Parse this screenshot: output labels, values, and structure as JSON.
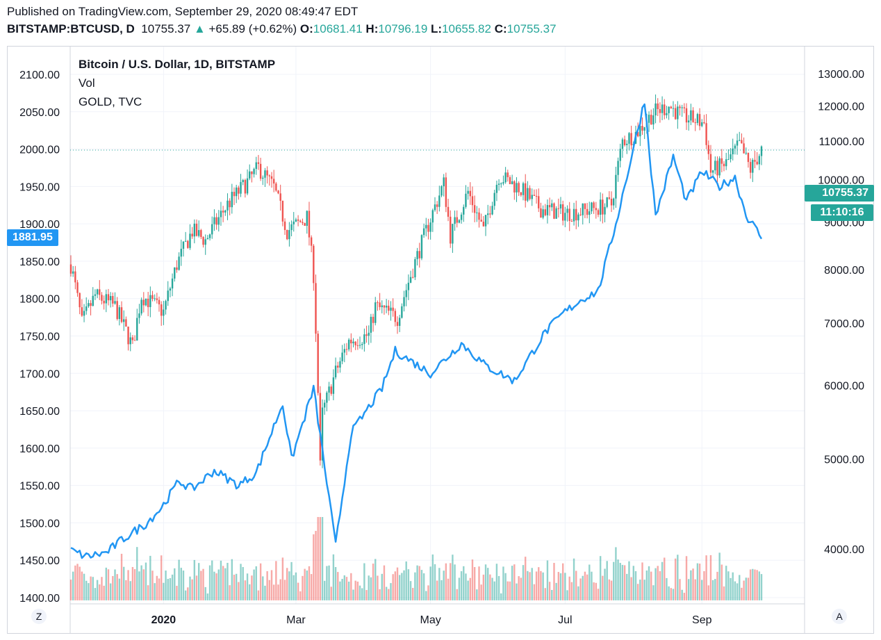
{
  "header": {
    "published": "Published on TradingView.com, September 29, 2020 08:49:47 EDT",
    "symbol": "BITSTAMP:BTCUSD, D",
    "last": "10755.37",
    "change": "+65.89 (+0.62%)",
    "o_label": "O:",
    "o_value": "10681.41",
    "h_label": "H:",
    "h_value": "10796.19",
    "l_label": "L:",
    "l_value": "10655.82",
    "c_label": "C:",
    "c_value": "10755.37"
  },
  "legend": {
    "main": "Bitcoin / U.S. Dollar, 1D, BITSTAMP",
    "vol": "Vol",
    "overlay": "GOLD, TVC"
  },
  "badges": {
    "gold_last": "1881.95",
    "btc_last": "10755.37",
    "countdown": "11:10:16"
  },
  "buttons": {
    "zoom": "Z",
    "auto": "A"
  },
  "colors": {
    "up": "#26a69a",
    "down": "#ef5350",
    "gold_line": "#2196f3"
  },
  "chart_data": {
    "type": "candlestick",
    "left_axis": {
      "label": "GOLD",
      "ticks": [
        1400,
        1450,
        1500,
        1550,
        1600,
        1650,
        1700,
        1750,
        1800,
        1850,
        1900,
        1950,
        2000,
        2050,
        2100
      ],
      "tick_labels": [
        "1400.00",
        "1450.00",
        "1500.00",
        "1550.00",
        "1600.00",
        "1650.00",
        "1700.00",
        "1750.00",
        "1800.00",
        "1850.00",
        "1900.00",
        "1950.00",
        "2000.00",
        "2050.00",
        "2100.00"
      ]
    },
    "right_axis": {
      "label": "BTCUSD",
      "ticks": [
        4000,
        5000,
        6000,
        7000,
        8000,
        9000,
        10000,
        11000,
        12000,
        13000
      ],
      "tick_labels": [
        "4000.00",
        "5000.00",
        "6000.00",
        "7000.00",
        "8000.00",
        "9000.00",
        "10000.00",
        "11000.00",
        "12000.00",
        "13000.00"
      ],
      "scale": "log"
    },
    "x_labels": [
      {
        "label": "2020",
        "date": "2020-01-01",
        "bold": true
      },
      {
        "label": "Mar",
        "date": "2020-03-01",
        "bold": false
      },
      {
        "label": "May",
        "date": "2020-05-01",
        "bold": false
      },
      {
        "label": "Jul",
        "date": "2020-07-01",
        "bold": false
      },
      {
        "label": "Sep",
        "date": "2020-09-01",
        "bold": false
      }
    ],
    "x_range": [
      "2019-11-20",
      "2020-09-28"
    ],
    "btc_anchors": [
      [
        "2019-11-20",
        8100
      ],
      [
        "2019-11-25",
        7000
      ],
      [
        "2019-12-01",
        7500
      ],
      [
        "2019-12-10",
        7300
      ],
      [
        "2019-12-18",
        6600
      ],
      [
        "2019-12-22",
        7500
      ],
      [
        "2020-01-01",
        7200
      ],
      [
        "2020-01-07",
        8100
      ],
      [
        "2020-01-14",
        8800
      ],
      [
        "2020-01-20",
        8600
      ],
      [
        "2020-01-30",
        9400
      ],
      [
        "2020-02-09",
        10000
      ],
      [
        "2020-02-13",
        10300
      ],
      [
        "2020-02-20",
        9800
      ],
      [
        "2020-02-26",
        8800
      ],
      [
        "2020-03-06",
        9100
      ],
      [
        "2020-03-09",
        7900
      ],
      [
        "2020-03-12",
        4900
      ],
      [
        "2020-03-13",
        5600
      ],
      [
        "2020-03-19",
        6200
      ],
      [
        "2020-03-25",
        6700
      ],
      [
        "2020-04-03",
        6800
      ],
      [
        "2020-04-06",
        7300
      ],
      [
        "2020-04-16",
        7100
      ],
      [
        "2020-04-29",
        8800
      ],
      [
        "2020-05-07",
        9900
      ],
      [
        "2020-05-10",
        8700
      ],
      [
        "2020-05-18",
        9700
      ],
      [
        "2020-05-25",
        8800
      ],
      [
        "2020-06-01",
        10100
      ],
      [
        "2020-06-10",
        9800
      ],
      [
        "2020-06-20",
        9300
      ],
      [
        "2020-07-01",
        9200
      ],
      [
        "2020-07-10",
        9250
      ],
      [
        "2020-07-22",
        9400
      ],
      [
        "2020-07-27",
        11000
      ],
      [
        "2020-08-02",
        11200
      ],
      [
        "2020-08-10",
        11800
      ],
      [
        "2020-08-17",
        12000
      ],
      [
        "2020-08-23",
        11700
      ],
      [
        "2020-09-02",
        11500
      ],
      [
        "2020-09-05",
        10200
      ],
      [
        "2020-09-12",
        10400
      ],
      [
        "2020-09-18",
        10900
      ],
      [
        "2020-09-23",
        10250
      ],
      [
        "2020-09-28",
        10755
      ]
    ],
    "gold_anchors": [
      [
        "2019-11-20",
        1463
      ],
      [
        "2019-11-27",
        1455
      ],
      [
        "2019-12-06",
        1460
      ],
      [
        "2019-12-13",
        1477
      ],
      [
        "2019-12-24",
        1499
      ],
      [
        "2019-12-31",
        1520
      ],
      [
        "2020-01-08",
        1556
      ],
      [
        "2020-01-14",
        1545
      ],
      [
        "2020-01-24",
        1570
      ],
      [
        "2020-02-04",
        1550
      ],
      [
        "2020-02-12",
        1567
      ],
      [
        "2020-02-24",
        1660
      ],
      [
        "2020-02-28",
        1585
      ],
      [
        "2020-03-09",
        1680
      ],
      [
        "2020-03-19",
        1470
      ],
      [
        "2020-03-26",
        1620
      ],
      [
        "2020-04-09",
        1680
      ],
      [
        "2020-04-15",
        1730
      ],
      [
        "2020-04-23",
        1715
      ],
      [
        "2020-05-01",
        1700
      ],
      [
        "2020-05-15",
        1740
      ],
      [
        "2020-05-26",
        1710
      ],
      [
        "2020-06-08",
        1690
      ],
      [
        "2020-06-22",
        1755
      ],
      [
        "2020-06-30",
        1780
      ],
      [
        "2020-07-09",
        1800
      ],
      [
        "2020-07-16",
        1810
      ],
      [
        "2020-07-24",
        1900
      ],
      [
        "2020-08-06",
        2065
      ],
      [
        "2020-08-11",
        1910
      ],
      [
        "2020-08-19",
        1990
      ],
      [
        "2020-08-25",
        1930
      ],
      [
        "2020-09-01",
        1970
      ],
      [
        "2020-09-09",
        1950
      ],
      [
        "2020-09-16",
        1962
      ],
      [
        "2020-09-21",
        1912
      ],
      [
        "2020-09-28",
        1882
      ]
    ],
    "volume_note": "daily volume bars at bottom, colored by candle direction",
    "last_price_line": 10755.37,
    "grid": true
  }
}
